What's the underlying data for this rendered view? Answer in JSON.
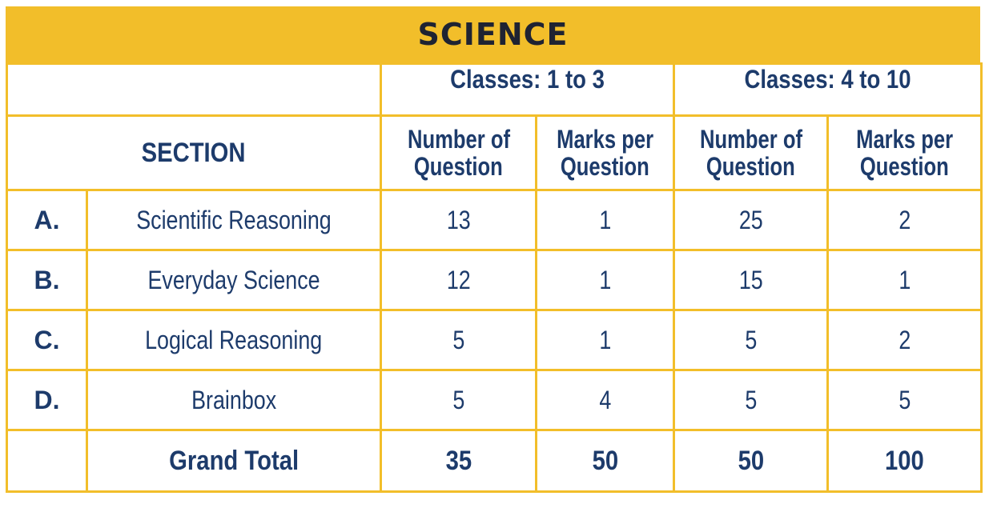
{
  "title": "SCIENCE",
  "class_groups": [
    "Classes: 1 to 3",
    "Classes: 4 to 10"
  ],
  "section_header": "SECTION",
  "sub_headers": {
    "number_of": "Number of",
    "question": "Question",
    "marks_per": "Marks per"
  },
  "rows": [
    {
      "letter": "A.",
      "name": "Scientific Reasoning",
      "c13_num": "13",
      "c13_marks": "1",
      "c410_num": "25",
      "c410_marks": "2"
    },
    {
      "letter": "B.",
      "name": "Everyday Science",
      "c13_num": "12",
      "c13_marks": "1",
      "c410_num": "15",
      "c410_marks": "1"
    },
    {
      "letter": "C.",
      "name": "Logical Reasoning",
      "c13_num": "5",
      "c13_marks": "1",
      "c410_num": "5",
      "c410_marks": "2"
    },
    {
      "letter": "D.",
      "name": "Brainbox",
      "c13_num": "5",
      "c13_marks": "4",
      "c410_num": "5",
      "c410_marks": "5"
    }
  ],
  "total": {
    "label": "Grand Total",
    "c13_num": "35",
    "c13_marks": "50",
    "c410_num": "50",
    "c410_marks": "100"
  },
  "colors": {
    "accent": "#f2be2a",
    "text": "#1d3b6b",
    "title_text": "#1f2332"
  }
}
